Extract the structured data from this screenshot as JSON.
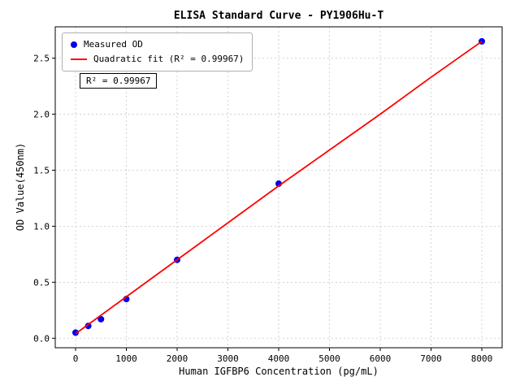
{
  "chart_data": {
    "type": "scatter",
    "title": "ELISA Standard Curve - PY1906Hu-T",
    "xlabel": "Human IGFBP6 Concentration (pg/mL)",
    "ylabel": "OD Value(450nm)",
    "xlim": [
      -400,
      8400
    ],
    "ylim": [
      -0.085,
      2.78
    ],
    "x_ticks": [
      0,
      1000,
      2000,
      3000,
      4000,
      5000,
      6000,
      7000,
      8000
    ],
    "y_ticks": [
      0.0,
      0.5,
      1.0,
      1.5,
      2.0,
      2.5
    ],
    "grid": true,
    "legend_position": "upper left",
    "annotation": "R² = 0.99967",
    "series": [
      {
        "name": "Measured OD",
        "type": "scatter",
        "color": "#0000ee",
        "x": [
          0,
          250,
          500,
          1000,
          2000,
          4000,
          8000
        ],
        "y": [
          0.05,
          0.11,
          0.17,
          0.35,
          0.7,
          1.38,
          2.65
        ]
      },
      {
        "name": "Quadratic fit (R² = 0.99967)",
        "type": "line",
        "color": "#ff0000",
        "x": [
          0,
          1000,
          2000,
          3000,
          4000,
          5000,
          6000,
          7000,
          8000
        ],
        "y": [
          0.04,
          0.37,
          0.7,
          1.03,
          1.36,
          1.68,
          2.0,
          2.33,
          2.65
        ]
      }
    ]
  }
}
